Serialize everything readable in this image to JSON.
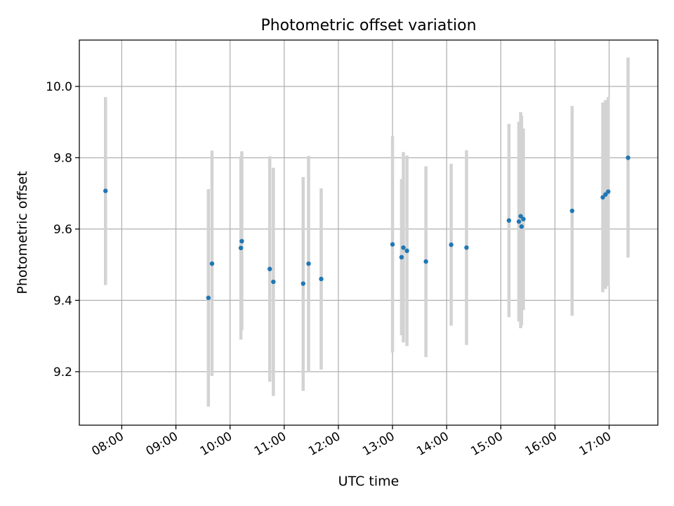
{
  "chart_data": {
    "type": "scatter",
    "title": "Photometric offset variation",
    "xlabel": "UTC time",
    "ylabel": "Photometric offset",
    "x_axis": {
      "kind": "time",
      "xlim": [
        "07:13",
        "17:54"
      ],
      "ticks": [
        "08:00",
        "09:00",
        "10:00",
        "11:00",
        "12:00",
        "13:00",
        "14:00",
        "15:00",
        "16:00",
        "17:00"
      ]
    },
    "y_axis": {
      "ylim": [
        9.05,
        10.13
      ],
      "ticks": [
        "9.2",
        "9.4",
        "9.6",
        "9.8",
        "10.0"
      ]
    },
    "grid": true,
    "legend": "none",
    "colors": {
      "point": "#1f77b4",
      "errorbar": "#d3d3d3",
      "grid": "#b0b0b0"
    },
    "series": [
      {
        "points": [
          {
            "x": "07:42",
            "y": 9.707,
            "lo": 9.443,
            "hi": 9.97
          },
          {
            "x": "09:36",
            "y": 9.407,
            "lo": 9.102,
            "hi": 9.712
          },
          {
            "x": "09:40",
            "y": 9.503,
            "lo": 9.188,
            "hi": 9.82
          },
          {
            "x": "10:12",
            "y": 9.547,
            "lo": 9.29,
            "hi": 9.804
          },
          {
            "x": "10:13",
            "y": 9.566,
            "lo": 9.316,
            "hi": 9.818
          },
          {
            "x": "10:44",
            "y": 9.488,
            "lo": 9.172,
            "hi": 9.804
          },
          {
            "x": "10:48",
            "y": 9.452,
            "lo": 9.132,
            "hi": 9.772
          },
          {
            "x": "11:21",
            "y": 9.447,
            "lo": 9.146,
            "hi": 9.746
          },
          {
            "x": "11:27",
            "y": 9.503,
            "lo": 9.2,
            "hi": 9.805
          },
          {
            "x": "11:41",
            "y": 9.46,
            "lo": 9.206,
            "hi": 9.714
          },
          {
            "x": "13:00",
            "y": 9.557,
            "lo": 9.254,
            "hi": 9.86
          },
          {
            "x": "13:10",
            "y": 9.521,
            "lo": 9.302,
            "hi": 9.74
          },
          {
            "x": "13:12",
            "y": 9.548,
            "lo": 9.282,
            "hi": 9.816
          },
          {
            "x": "13:16",
            "y": 9.539,
            "lo": 9.272,
            "hi": 9.806
          },
          {
            "x": "13:37",
            "y": 9.509,
            "lo": 9.241,
            "hi": 9.776
          },
          {
            "x": "14:05",
            "y": 9.556,
            "lo": 9.329,
            "hi": 9.783
          },
          {
            "x": "14:22",
            "y": 9.548,
            "lo": 9.275,
            "hi": 9.821
          },
          {
            "x": "15:09",
            "y": 9.624,
            "lo": 9.353,
            "hi": 9.895
          },
          {
            "x": "15:20",
            "y": 9.621,
            "lo": 9.341,
            "hi": 9.901
          },
          {
            "x": "15:22",
            "y": 9.636,
            "lo": 9.322,
            "hi": 9.928
          },
          {
            "x": "15:23",
            "y": 9.607,
            "lo": 9.33,
            "hi": 9.918
          },
          {
            "x": "15:25",
            "y": 9.628,
            "lo": 9.373,
            "hi": 9.882
          },
          {
            "x": "16:19",
            "y": 9.651,
            "lo": 9.357,
            "hi": 9.945
          },
          {
            "x": "16:53",
            "y": 9.689,
            "lo": 9.423,
            "hi": 9.955
          },
          {
            "x": "16:56",
            "y": 9.697,
            "lo": 9.432,
            "hi": 9.962
          },
          {
            "x": "16:59",
            "y": 9.705,
            "lo": 9.44,
            "hi": 9.97
          },
          {
            "x": "17:21",
            "y": 9.8,
            "lo": 9.52,
            "hi": 10.081
          }
        ]
      }
    ]
  }
}
